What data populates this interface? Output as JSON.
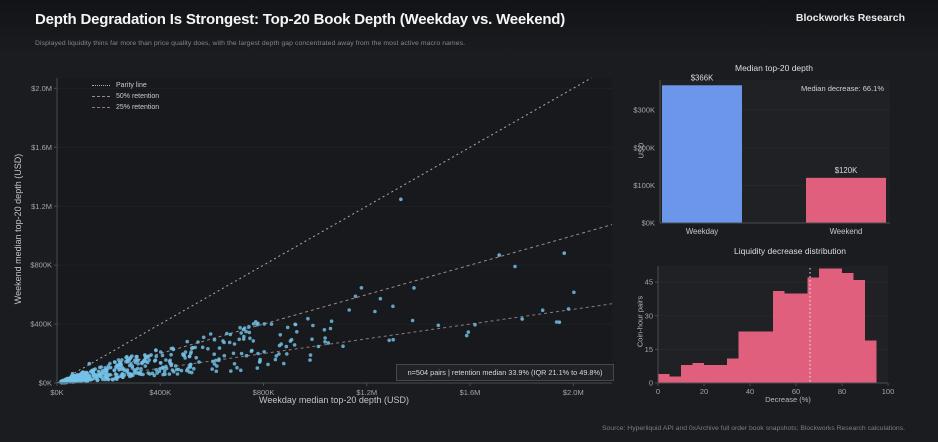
{
  "header": {
    "title": "Depth Degradation Is Strongest: Top-20 Book Depth (Weekday vs. Weekend)",
    "brand": "Blockworks Research",
    "subtitle": "Displayed liquidity thins far more than price quality does, with the largest depth gap concentrated away from the most active macro names."
  },
  "footer": {
    "source": "Source: Hyperliquid API and 0xArchive full order book snapshots; Blockworks Research calculations."
  },
  "chart_data": [
    {
      "type": "scatter",
      "name": "weekday-vs-weekend-depth-scatter",
      "xlabel": "Weekday median top-20 depth (USD)",
      "ylabel": "Weekend median top-20 depth (USD)",
      "xlim_k": [
        0,
        2150
      ],
      "ylim_k": [
        0,
        2070
      ],
      "x_ticks": [
        {
          "v": 0,
          "label": "$0K"
        },
        {
          "v": 400,
          "label": "$400K"
        },
        {
          "v": 800,
          "label": "$800K"
        },
        {
          "v": 1200,
          "label": "$1.2M"
        },
        {
          "v": 1600,
          "label": "$1.6M"
        },
        {
          "v": 2000,
          "label": "$2.0M"
        }
      ],
      "y_ticks": [
        {
          "v": 0,
          "label": "$0K"
        },
        {
          "v": 400,
          "label": "$400K"
        },
        {
          "v": 800,
          "label": "$800K"
        },
        {
          "v": 1200,
          "label": "$1.2M"
        },
        {
          "v": 1600,
          "label": "$1.6M"
        },
        {
          "v": 2000,
          "label": "$2.0M"
        }
      ],
      "legend": [
        {
          "label": "Parity line",
          "retention_pct": 100,
          "color": "#a9adb1",
          "dash": "2 3"
        },
        {
          "label": "50% retention",
          "retention_pct": 50,
          "color": "#a18a8c",
          "dash": "3 3"
        },
        {
          "label": "25% retention",
          "retention_pct": 25,
          "color": "#917a7c",
          "dash": "3 3"
        }
      ],
      "annotation": "n=504 pairs | retention median 33.9% (IQR 21.1% to 49.8%)",
      "n_pairs": 504,
      "retention_median_pct": 33.9,
      "retention_iqr_pct": [
        21.1,
        49.8
      ],
      "point_color": "#74c2e8",
      "cloud": {
        "seed": 7,
        "strata": [
          {
            "x": [
              15,
              120
            ],
            "r": [
              8,
              75
            ],
            "n": 150
          },
          {
            "x": [
              120,
              300
            ],
            "r": [
              10,
              66
            ],
            "n": 130
          },
          {
            "x": [
              300,
              520
            ],
            "r": [
              12,
              60
            ],
            "n": 90
          },
          {
            "x": [
              520,
              800
            ],
            "r": [
              12,
              56
            ],
            "n": 60
          },
          {
            "x": [
              800,
              1150
            ],
            "r": [
              15,
              50
            ],
            "n": 34
          },
          {
            "x": [
              1150,
              1600
            ],
            "r": [
              15,
              55
            ],
            "n": 12
          },
          {
            "x": [
              1600,
              2060
            ],
            "r": [
              18,
              45
            ],
            "n": 6
          }
        ]
      },
      "outliers_k": [
        [
          1332,
          1247
        ],
        [
          1713,
          868
        ],
        [
          1965,
          881
        ],
        [
          1802,
          434
        ],
        [
          1946,
          413
        ],
        [
          60,
          63
        ],
        [
          125,
          131
        ]
      ]
    },
    {
      "type": "bar",
      "name": "median-top20-depth-bars",
      "title": "Median top-20 depth",
      "ylabel": "USD",
      "categories": [
        "Weekday",
        "Weekend"
      ],
      "values": [
        366,
        120
      ],
      "value_labels": [
        "$366K",
        "$120K"
      ],
      "colors": [
        "#6b96e9",
        "#e05f7d"
      ],
      "y_ticks": [
        {
          "v": 0,
          "label": "$0K"
        },
        {
          "v": 100,
          "label": "$100K"
        },
        {
          "v": 200,
          "label": "$200K"
        },
        {
          "v": 300,
          "label": "$300K"
        }
      ],
      "ylim": [
        0,
        380
      ],
      "annotation": "Median decrease: 66.1%"
    },
    {
      "type": "histogram",
      "name": "liquidity-decrease-distribution",
      "title": "Liquidity decrease distribution",
      "xlabel": "Decrease (%)",
      "ylabel": "Coin-hour pairs",
      "bin_width": 5,
      "bin_starts": [
        0,
        5,
        10,
        15,
        20,
        25,
        30,
        35,
        40,
        45,
        50,
        55,
        60,
        65,
        70,
        75,
        80,
        85,
        90
      ],
      "values": [
        4,
        3,
        8,
        9,
        8,
        8,
        11,
        23,
        23,
        23,
        41,
        40,
        40,
        47,
        51,
        51,
        49,
        46,
        19
      ],
      "x_ticks": [
        0,
        20,
        40,
        60,
        80,
        100
      ],
      "y_ticks": [
        0,
        15,
        30,
        45
      ],
      "ylim": [
        0,
        52.2
      ],
      "median_pct": 66.1,
      "color": "#e05f7d",
      "median_line_color": "#e8e9eb"
    }
  ]
}
